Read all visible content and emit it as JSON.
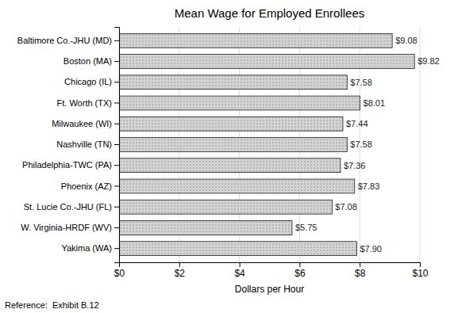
{
  "chart_data": {
    "type": "bar",
    "orientation": "horizontal",
    "title": "Mean Wage for Employed Enrollees",
    "xlabel": "Dollars per Hour",
    "annotation": "Reference:  Exhibit B.12",
    "categories": [
      "Baltimore Co.-JHU (MD)",
      "Boston (MA)",
      "Chicago (IL)",
      "Ft. Worth (TX)",
      "Milwaukee (WI)",
      "Nashville (TN)",
      "Philadelphia-TWC (PA)",
      "Phoenix (AZ)",
      "St. Lucie Co.-JHU (FL)",
      "W. Virginia-HRDF (WV)",
      "Yakima (WA)"
    ],
    "values": [
      9.08,
      9.82,
      7.58,
      8.01,
      7.44,
      7.58,
      7.36,
      7.83,
      7.08,
      5.75,
      7.9
    ],
    "value_labels": [
      "$9.08",
      "$9.82",
      "$7.58",
      "$8.01",
      "$7.44",
      "$7.58",
      "$7.36",
      "$7.83",
      "$7.08",
      "$5.75",
      "$7.90"
    ],
    "data_labels": true,
    "color": "#d3d3d3",
    "xlim": [
      0,
      10
    ],
    "xticks": [
      {
        "value": 0,
        "label": "$0"
      },
      {
        "value": 2,
        "label": "$2"
      },
      {
        "value": 4,
        "label": "$4"
      },
      {
        "value": 6,
        "label": "$6"
      },
      {
        "value": 8,
        "label": "$8"
      },
      {
        "value": 10,
        "label": "$10"
      }
    ],
    "grid": true
  }
}
